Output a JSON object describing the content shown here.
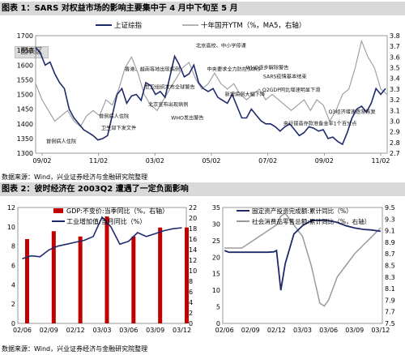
{
  "figure1": {
    "title": "图表 1：SARS 对权益市场的影响主要集中于 4 月中下旬至 5 月",
    "source": "数据来源：Wind，兴业证券经济与金融研究院整理",
    "watermark": "图表区",
    "colors": {
      "index": "#1f2a6b",
      "yield": "#9a9a9a"
    }
  },
  "figure2": {
    "title": "图表 2：彼时经济在 2003Q2 遭遇了一定负面影响",
    "source": "数据来源：Wind，兴业证券经济与金融研究院整理",
    "colors": {
      "gdp": "#c00000",
      "industry": "#1f2a6b",
      "fai": "#1f2a6b",
      "retail": "#9a9a9a"
    }
  },
  "chart_data": [
    {
      "type": "line",
      "legend": [
        "上证综指",
        "十年国开YTM（%，MA5，右轴）"
      ],
      "legend_position": "top",
      "x_ticks": [
        "09/02",
        "11/02",
        "03/02",
        "05/02",
        "07/02",
        "09/02",
        "11/02"
      ],
      "xlim": [
        0,
        22
      ],
      "ylim_left": [
        1300,
        1700
      ],
      "yticks_left": [
        1300,
        1350,
        1400,
        1450,
        1500,
        1550,
        1600,
        1650,
        1700
      ],
      "ylim_right": [
        2.7,
        3.8
      ],
      "yticks_right": [
        "2.7",
        "2.8",
        "2.9",
        "3.0",
        "3.1",
        "3.2",
        "3.3",
        "3.4",
        "3.5",
        "3.6",
        "3.7",
        "3.8"
      ],
      "series": [
        {
          "name": "上证综指",
          "axis": "left",
          "x": [
            0,
            0.3,
            0.6,
            0.9,
            1.2,
            1.5,
            1.8,
            2.1,
            2.4,
            2.7,
            3.0,
            3.3,
            3.6,
            3.9,
            4.2,
            4.5,
            4.8,
            5.1,
            5.4,
            5.7,
            6.0,
            6.3,
            6.6,
            6.9,
            7.2,
            7.5,
            7.8,
            8.1,
            8.4,
            8.7,
            9.0,
            9.3,
            9.6,
            9.9,
            10.2,
            10.5,
            10.8,
            11.1,
            11.4,
            11.7,
            12.0,
            12.3,
            12.6,
            12.9,
            13.2,
            13.5,
            13.8,
            14.1,
            14.4,
            14.7,
            15.0,
            15.3,
            15.6,
            15.9,
            16.2,
            16.5,
            16.8,
            17.1,
            17.4,
            17.7,
            18.0,
            18.3,
            18.6,
            18.9,
            19.2,
            19.5,
            19.8,
            20.1,
            20.4,
            20.7,
            21.0,
            21.3,
            21.6,
            21.9
          ],
          "y": [
            1660,
            1640,
            1600,
            1610,
            1570,
            1540,
            1520,
            1450,
            1420,
            1400,
            1380,
            1370,
            1360,
            1345,
            1350,
            1360,
            1430,
            1500,
            1520,
            1470,
            1495,
            1500,
            1480,
            1540,
            1530,
            1500,
            1510,
            1490,
            1560,
            1630,
            1600,
            1560,
            1570,
            1600,
            1540,
            1520,
            1510,
            1520,
            1490,
            1480,
            1470,
            1500,
            1460,
            1420,
            1420,
            1450,
            1430,
            1410,
            1400,
            1400,
            1390,
            1375,
            1390,
            1400,
            1380,
            1360,
            1370,
            1390,
            1385,
            1375,
            1380,
            1350,
            1355,
            1340,
            1330,
            1370,
            1420,
            1450,
            1460,
            1440,
            1470,
            1520,
            1500,
            1520
          ]
        },
        {
          "name": "十年国开YTM（%，MA5，右轴）",
          "axis": "right",
          "x": [
            0,
            0.4,
            0.8,
            1.2,
            1.6,
            2.0,
            2.4,
            2.8,
            3.2,
            3.6,
            4.0,
            4.4,
            4.8,
            5.2,
            5.6,
            6.0,
            6.4,
            6.8,
            7.2,
            7.6,
            8.0,
            8.4,
            8.8,
            9.2,
            9.6,
            10.0,
            10.4,
            10.8,
            11.2,
            11.6,
            12.0,
            12.4,
            12.8,
            13.2,
            13.6,
            14.0,
            14.4,
            14.8,
            15.2,
            15.6,
            16.0,
            16.4,
            16.8,
            17.2,
            17.6,
            18.0,
            18.4,
            18.8,
            19.2,
            19.6,
            20.0,
            20.4,
            20.8,
            21.2,
            21.6,
            22.0
          ],
          "y": [
            3.35,
            3.2,
            3.1,
            3.0,
            3.05,
            3.1,
            3.0,
            2.95,
            3.05,
            3.1,
            3.05,
            3.2,
            3.15,
            3.3,
            3.5,
            3.6,
            3.45,
            3.25,
            3.15,
            3.1,
            3.2,
            3.3,
            3.4,
            3.5,
            3.55,
            3.4,
            3.3,
            3.35,
            3.45,
            3.35,
            3.3,
            3.35,
            3.25,
            3.2,
            3.25,
            3.3,
            3.2,
            3.25,
            3.2,
            3.15,
            3.1,
            3.15,
            3.2,
            3.1,
            3.2,
            3.15,
            3.0,
            3.1,
            3.25,
            3.3,
            3.5,
            3.75,
            3.6,
            3.5,
            3.3,
            3.25
          ]
        }
      ],
      "annotations": [
        {
          "text": "首例病人住院",
          "x": 1.6,
          "y": 1335
        },
        {
          "text": "首例病人住院",
          "x": 4.9,
          "y": 1420
        },
        {
          "text": "卫生部下发文件",
          "x": 5.2,
          "y": 1380
        },
        {
          "text": "香港、越南等地出现病例",
          "x": 7.3,
          "y": 1580
        },
        {
          "text": "北京宣布出现病例",
          "x": 8.3,
          "y": 1460
        },
        {
          "text": "世卫组织发布全球警告",
          "x": 8.4,
          "y": 1520
        },
        {
          "text": "WHO发出警告",
          "x": 9.5,
          "y": 1415
        },
        {
          "text": "北京高校、中小学停课",
          "x": 11.6,
          "y": 1660
        },
        {
          "text": "中央要求全力防控SARS",
          "x": 12.4,
          "y": 1580
        },
        {
          "text": "新增病例大幅下降",
          "x": 13.1,
          "y": 1495
        },
        {
          "text": "WHO逐步解除警告",
          "x": 14.5,
          "y": 1585
        },
        {
          "text": "SARS疫情基本结束",
          "x": 15.6,
          "y": 1555
        },
        {
          "text": "Q2GDP同比增速明显下滑",
          "x": 16.0,
          "y": 1510
        },
        {
          "text": "央行提高存款准备金率1个百分点",
          "x": 17.8,
          "y": 1395
        },
        {
          "text": "Q3经济增速逐渐恢复",
          "x": 19.8,
          "y": 1435
        }
      ]
    },
    {
      "type": "bar+line",
      "legend": [
        "GDP:不变价:当季同比（%，右轴）",
        "工业增加值:当月同比（%）"
      ],
      "legend_position": "top",
      "x_ticks": [
        "02/06",
        "02/09",
        "02/12",
        "03/03",
        "03/06",
        "03/09",
        "03/12"
      ],
      "xlim": [
        0,
        18
      ],
      "ylim_left": [
        0,
        12
      ],
      "yticks_left": [
        0,
        2,
        4,
        6,
        8,
        10,
        12
      ],
      "ylim_right": [
        0,
        22
      ],
      "yticks_right": [
        0,
        2,
        4,
        6,
        8,
        10,
        12,
        14,
        16,
        18,
        20,
        22
      ],
      "series": [
        {
          "name": "GDP:不变价:当季同比（%，右轴）",
          "axis": "right",
          "kind": "bar",
          "x": [
            0,
            3,
            6,
            9,
            12,
            15,
            18
          ],
          "y": [
            16,
            17.5,
            16.5,
            20.3,
            16.5,
            18.2,
            18.2
          ]
        },
        {
          "name": "工业增加值:当月同比（%）",
          "axis": "left",
          "kind": "line",
          "x": [
            0,
            1,
            2,
            3,
            4,
            5,
            6,
            7,
            8,
            9,
            10,
            11,
            12,
            13,
            14,
            15,
            16,
            17,
            18
          ],
          "y": [
            6.7,
            7.0,
            6.9,
            7.6,
            8.0,
            8.2,
            8.4,
            8.6,
            9.0,
            11.0,
            10.0,
            8.2,
            8.5,
            9.4,
            9.0,
            9.3,
            9.6,
            9.8,
            9.9
          ]
        }
      ]
    },
    {
      "type": "line",
      "legend": [
        "固定资产投资完成额:累计同比（%）",
        "社会消费品零售总额:累计同比（%，右轴）"
      ],
      "legend_position": "top",
      "x_ticks": [
        "02/06",
        "02/09",
        "02/12",
        "03/03",
        "03/06",
        "03/09",
        "03/12"
      ],
      "xlim": [
        0,
        18
      ],
      "ylim_left": [
        0,
        35
      ],
      "yticks_left": [
        0,
        5,
        10,
        15,
        20,
        25,
        30,
        35
      ],
      "ylim_right": [
        7.5,
        9.5
      ],
      "yticks_right": [
        "7.5",
        "7.7",
        "7.9",
        "8.1",
        "8.3",
        "8.5",
        "8.7",
        "8.9",
        "9.1",
        "9.3",
        "9.5"
      ],
      "series": [
        {
          "name": "固定资产投资完成额:累计同比（%）",
          "axis": "left",
          "x": [
            0,
            0.5,
            1,
            2,
            3,
            4,
            5,
            5.7,
            6,
            6.5,
            7,
            8,
            9,
            10,
            11,
            12,
            13,
            14,
            15,
            16,
            17,
            18
          ],
          "y": [
            22,
            21.5,
            21.5,
            21.5,
            21.5,
            21.5,
            21.5,
            21.6,
            22,
            10,
            18,
            27,
            29.5,
            31,
            31.2,
            31,
            30.5,
            29.5,
            28.8,
            28.4,
            28.2,
            27.8
          ]
        },
        {
          "name": "社会消费品零售总额:累计同比（%，右轴）",
          "axis": "right",
          "x": [
            0,
            1,
            2,
            3,
            4,
            5,
            6,
            6.5,
            7,
            8,
            9,
            10,
            11,
            11.5,
            12,
            13,
            14,
            15,
            16,
            17,
            18
          ],
          "y": [
            8.8,
            8.8,
            8.8,
            8.9,
            9.0,
            9.1,
            9.2,
            9.35,
            9.4,
            9.2,
            9.0,
            8.5,
            7.85,
            7.8,
            7.9,
            8.3,
            8.5,
            8.7,
            8.85,
            9.0,
            9.15
          ]
        }
      ]
    }
  ]
}
